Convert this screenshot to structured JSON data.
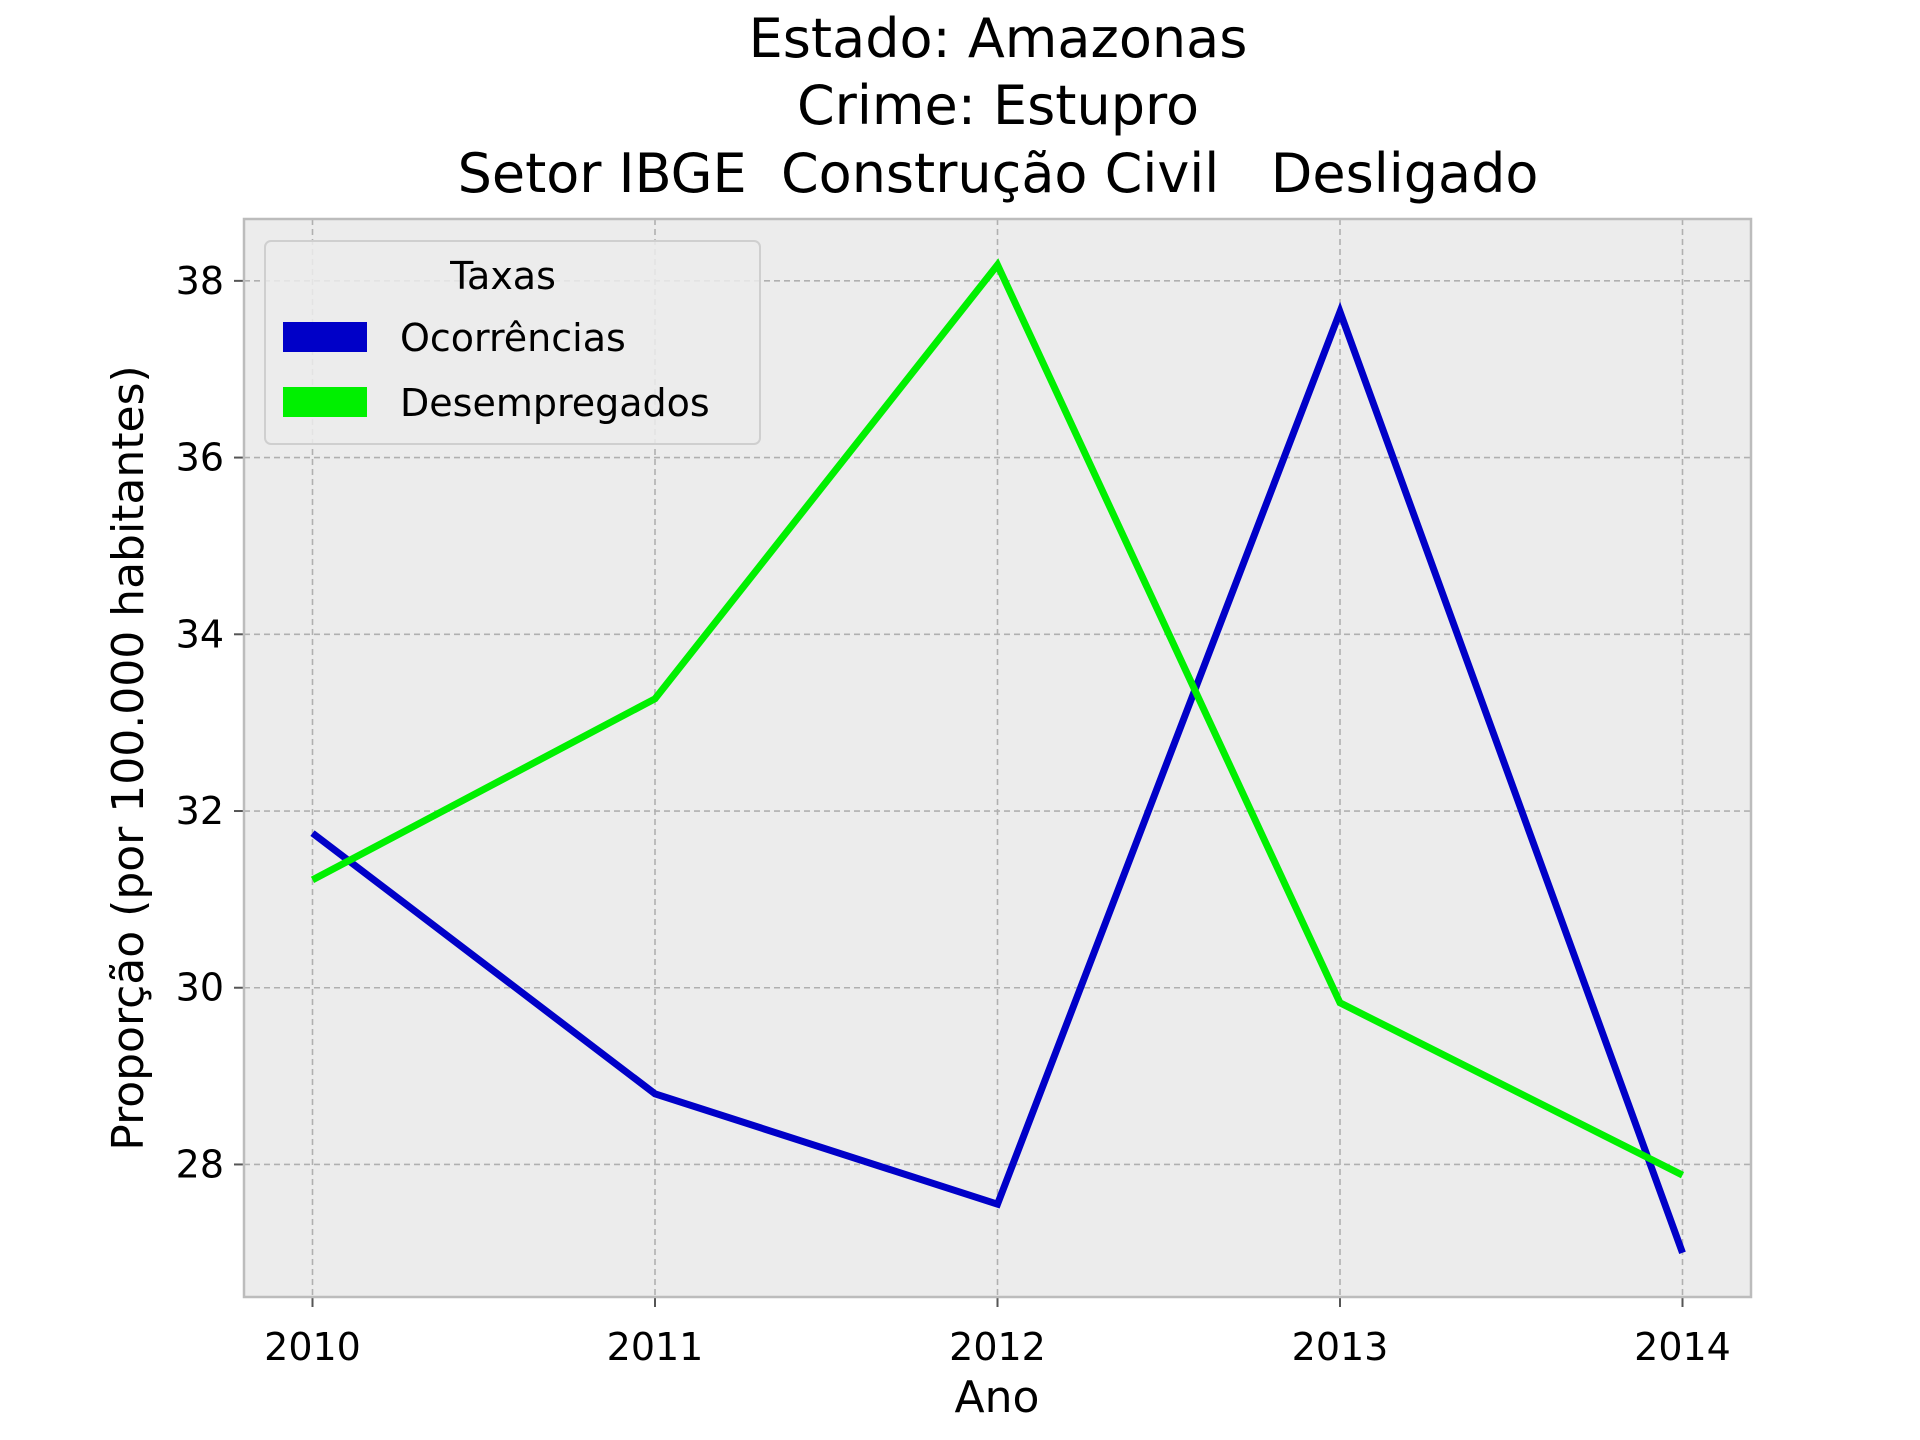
{
  "chart_data": {
    "type": "line",
    "title_lines": [
      "Estado: Amazonas",
      "Crime: Estupro",
      "Setor IBGE  Construção Civil   Desligado"
    ],
    "xlabel": "Ano",
    "ylabel": "Proporção (por 100.000 habitantes)",
    "x": [
      2010,
      2011,
      2012,
      2013,
      2014
    ],
    "x_tick_labels": [
      "2010",
      "2011",
      "2012",
      "2013",
      "2014"
    ],
    "xlim": [
      2009.8,
      2014.2
    ],
    "ylim": [
      26.5,
      38.7
    ],
    "y_ticks": [
      28,
      30,
      32,
      34,
      36,
      38
    ],
    "y_tick_labels": [
      "28",
      "30",
      "32",
      "34",
      "36",
      "38"
    ],
    "grid": true,
    "legend": {
      "title": "Taxas",
      "placement": "top-left"
    },
    "series": [
      {
        "name": "Ocorrências",
        "color": "#0000c8",
        "values": [
          31.75,
          28.8,
          27.55,
          37.65,
          27.0
        ]
      },
      {
        "name": "Desempregados",
        "color": "#00f000",
        "values": [
          31.22,
          33.27,
          38.18,
          29.83,
          27.88
        ]
      }
    ]
  },
  "style": {
    "plot_background": "#ececec",
    "spine_color": "#bcbcbc"
  }
}
